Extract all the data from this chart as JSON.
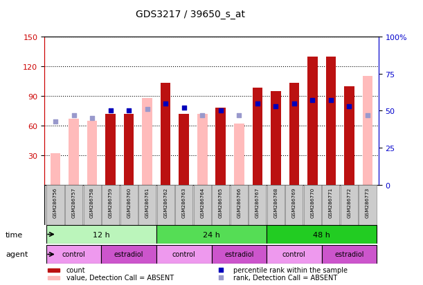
{
  "title": "GDS3217 / 39650_s_at",
  "samples": [
    "GSM286756",
    "GSM286757",
    "GSM286758",
    "GSM286759",
    "GSM286760",
    "GSM286761",
    "GSM286762",
    "GSM286763",
    "GSM286764",
    "GSM286765",
    "GSM286766",
    "GSM286767",
    "GSM286768",
    "GSM286769",
    "GSM286770",
    "GSM286771",
    "GSM286772",
    "GSM286773"
  ],
  "count": [
    null,
    null,
    null,
    72,
    72,
    null,
    103,
    72,
    null,
    78,
    null,
    98,
    95,
    103,
    130,
    130,
    100,
    null
  ],
  "count_absent": [
    32,
    67,
    65,
    null,
    null,
    88,
    null,
    null,
    72,
    null,
    62,
    null,
    null,
    null,
    null,
    null,
    null,
    110
  ],
  "percentile": [
    null,
    null,
    null,
    50,
    50,
    null,
    55,
    52,
    null,
    50,
    null,
    55,
    53,
    55,
    57,
    57,
    53,
    null
  ],
  "percentile_absent": [
    43,
    47,
    45,
    null,
    null,
    51,
    null,
    null,
    47,
    null,
    47,
    null,
    null,
    null,
    null,
    null,
    null,
    47
  ],
  "ylim_left": [
    0,
    150
  ],
  "ylim_right": [
    0,
    100
  ],
  "yticks_left": [
    30,
    60,
    90,
    120,
    150
  ],
  "yticks_right": [
    0,
    25,
    50,
    75,
    100
  ],
  "ytick_labels_right": [
    "0",
    "25",
    "50",
    "75",
    "100%"
  ],
  "time_groups": [
    {
      "label": "12 h",
      "start": 0,
      "end": 6,
      "color": "#bbf5bb"
    },
    {
      "label": "24 h",
      "start": 6,
      "end": 12,
      "color": "#55dd55"
    },
    {
      "label": "48 h",
      "start": 12,
      "end": 18,
      "color": "#22cc22"
    }
  ],
  "agent_groups": [
    {
      "label": "control",
      "start": 0,
      "end": 3,
      "color": "#ee99ee"
    },
    {
      "label": "estradiol",
      "start": 3,
      "end": 6,
      "color": "#cc55cc"
    },
    {
      "label": "control",
      "start": 6,
      "end": 9,
      "color": "#ee99ee"
    },
    {
      "label": "estradiol",
      "start": 9,
      "end": 12,
      "color": "#cc55cc"
    },
    {
      "label": "control",
      "start": 12,
      "end": 15,
      "color": "#ee99ee"
    },
    {
      "label": "estradiol",
      "start": 15,
      "end": 18,
      "color": "#cc55cc"
    }
  ],
  "bar_color_red": "#bb1111",
  "bar_color_pink": "#ffbbbb",
  "dot_color_blue": "#0000bb",
  "dot_color_lightblue": "#9999cc",
  "bar_width": 0.55,
  "xlabel_color": "#cc0000",
  "ylabel_right_color": "#0000cc"
}
